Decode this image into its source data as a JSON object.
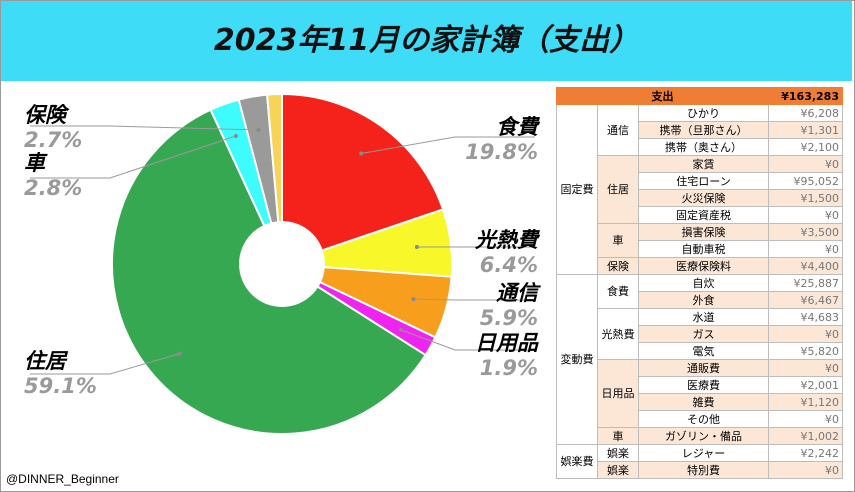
{
  "title": "2023年11月の家計簿（支出）",
  "credit": "@DINNER_Beginner",
  "chart_data": {
    "type": "pie",
    "donut": true,
    "slices": [
      {
        "label": "食費",
        "pct": 19.8,
        "pct_text": "19.8%",
        "color": "#f5221b"
      },
      {
        "label": "光熱費",
        "pct": 6.4,
        "pct_text": "6.4%",
        "color": "#f7f729"
      },
      {
        "label": "通信",
        "pct": 5.9,
        "pct_text": "5.9%",
        "color": "#f79e1c"
      },
      {
        "label": "日用品",
        "pct": 1.9,
        "pct_text": "1.9%",
        "color": "#f024f0"
      },
      {
        "label": "住居",
        "pct": 59.1,
        "pct_text": "59.1%",
        "color": "#36a852"
      },
      {
        "label": "車",
        "pct": 2.8,
        "pct_text": "2.8%",
        "color": "#3ffcfc"
      },
      {
        "label": "保険",
        "pct": 2.7,
        "pct_text": "2.7%",
        "color": "#9a9a9a"
      },
      {
        "label": "",
        "pct": 1.4,
        "pct_text": "",
        "color": "#f7d35a"
      }
    ]
  },
  "table": {
    "header": {
      "label": "支出",
      "amount": "¥163,283"
    },
    "rows": [
      {
        "g1": "固定費",
        "g2": "通信",
        "item": "ひかり",
        "amount": "¥6,208"
      },
      {
        "g1": "",
        "g2": "",
        "item": "携帯（旦那さん）",
        "amount": "¥1,301"
      },
      {
        "g1": "",
        "g2": "",
        "item": "携帯（奥さん）",
        "amount": "¥2,100"
      },
      {
        "g1": "",
        "g2": "住居",
        "item": "家賃",
        "amount": "¥0"
      },
      {
        "g1": "",
        "g2": "",
        "item": "住宅ローン",
        "amount": "¥95,052"
      },
      {
        "g1": "",
        "g2": "",
        "item": "火災保険",
        "amount": "¥1,500"
      },
      {
        "g1": "",
        "g2": "",
        "item": "固定資産税",
        "amount": "¥0"
      },
      {
        "g1": "",
        "g2": "車",
        "item": "損害保険",
        "amount": "¥3,500"
      },
      {
        "g1": "",
        "g2": "",
        "item": "自動車税",
        "amount": "¥0"
      },
      {
        "g1": "",
        "g2": "保険",
        "item": "医療保険料",
        "amount": "¥4,400"
      },
      {
        "g1": "変動費",
        "g2": "食費",
        "item": "自炊",
        "amount": "¥25,887"
      },
      {
        "g1": "",
        "g2": "",
        "item": "外食",
        "amount": "¥6,467"
      },
      {
        "g1": "",
        "g2": "光熱費",
        "item": "水道",
        "amount": "¥4,683"
      },
      {
        "g1": "",
        "g2": "",
        "item": "ガス",
        "amount": "¥0"
      },
      {
        "g1": "",
        "g2": "",
        "item": "電気",
        "amount": "¥5,820"
      },
      {
        "g1": "",
        "g2": "日用品",
        "item": "通販費",
        "amount": "¥0"
      },
      {
        "g1": "",
        "g2": "",
        "item": "医療費",
        "amount": "¥2,001"
      },
      {
        "g1": "",
        "g2": "",
        "item": "雑費",
        "amount": "¥1,120"
      },
      {
        "g1": "",
        "g2": "",
        "item": "その他",
        "amount": "¥0"
      },
      {
        "g1": "",
        "g2": "車",
        "item": "ガゾリン・備品",
        "amount": "¥1,002"
      },
      {
        "g1": "娯楽費",
        "g2": "娯楽",
        "item": "レジャー",
        "amount": "¥2,242"
      },
      {
        "g1": "",
        "g2": "娯楽",
        "item": "特別費",
        "amount": "¥0"
      }
    ]
  }
}
